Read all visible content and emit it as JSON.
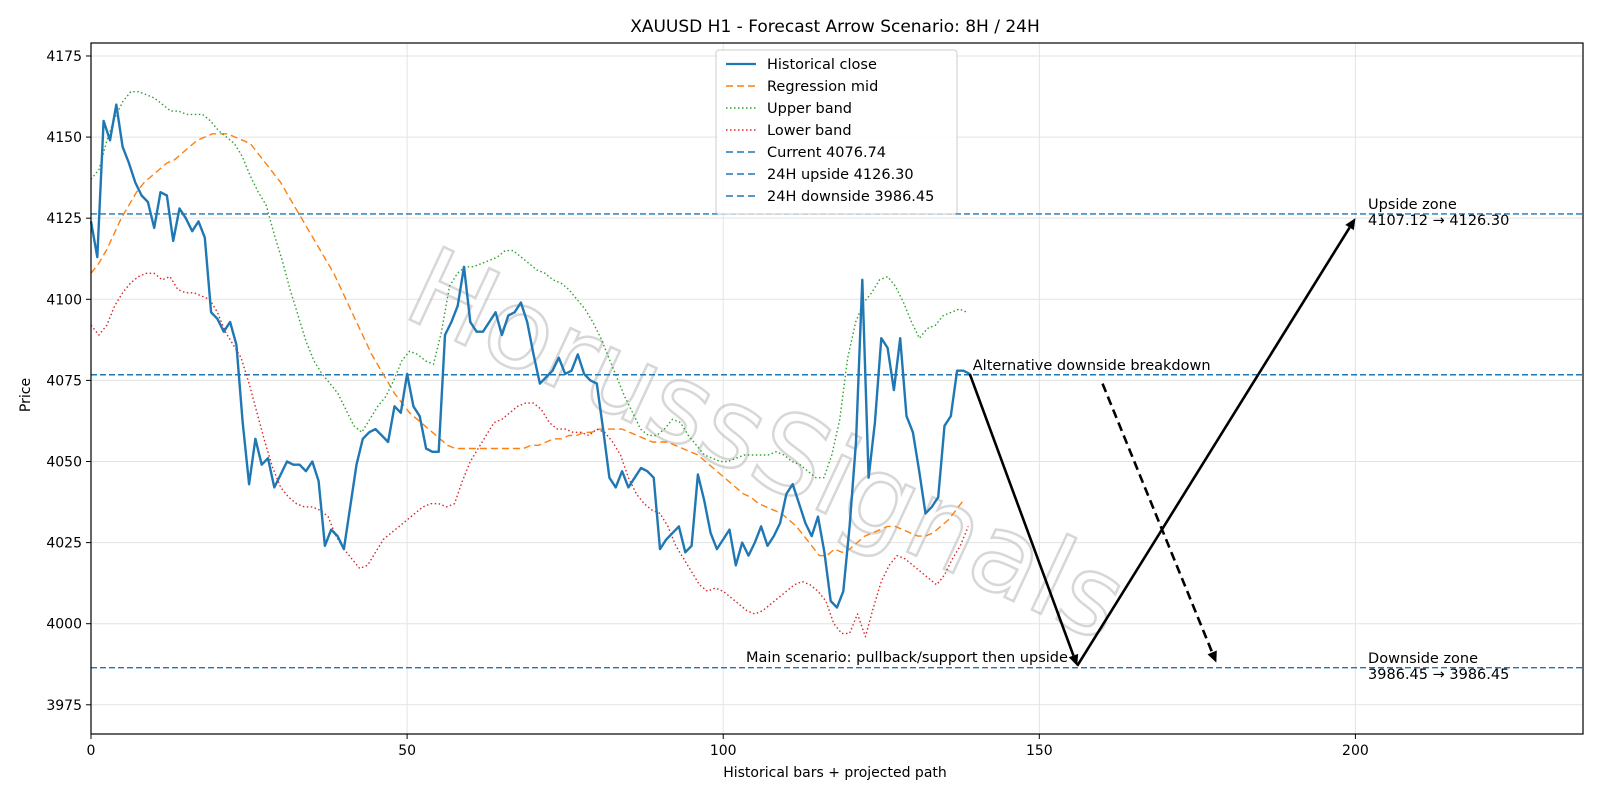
{
  "chart_data": {
    "type": "line",
    "title": "XAUUSD H1 - Forecast Arrow Scenario: 8H / 24H",
    "xlabel": "Historical bars + projected path",
    "ylabel": "Price",
    "xlim": [
      0,
      236
    ],
    "ylim": [
      3966,
      4179
    ],
    "x_ticks": [
      0,
      50,
      100,
      150,
      200
    ],
    "y_ticks": [
      3975,
      4000,
      4025,
      4050,
      4075,
      4100,
      4125,
      4150,
      4175
    ],
    "grid": true,
    "legend_position": "upper-center",
    "watermark": "HorussSignals",
    "series": [
      {
        "name": "Historical close",
        "color": "#1f77b4",
        "style": "solid",
        "x_start": 0,
        "values": [
          4124,
          4113,
          4155,
          4149,
          4160,
          4147,
          4142,
          4136,
          4132,
          4130,
          4122,
          4133,
          4132,
          4118,
          4128,
          4125,
          4121,
          4124,
          4119,
          4096,
          4094,
          4090,
          4093,
          4086,
          4062,
          4043,
          4057,
          4049,
          4051,
          4042,
          4046,
          4050,
          4049,
          4049,
          4047,
          4050,
          4044,
          4024,
          4029,
          4027,
          4023,
          4036,
          4049,
          4057,
          4059,
          4060,
          4058,
          4056,
          4067,
          4065,
          4077,
          4067,
          4064,
          4054,
          4053,
          4053,
          4089,
          4093,
          4098,
          4110,
          4093,
          4090,
          4090,
          4093,
          4096,
          4089,
          4095,
          4096,
          4099,
          4093,
          4083,
          4074,
          4076,
          4078,
          4082,
          4077,
          4078,
          4083,
          4077,
          4075,
          4074,
          4060,
          4045,
          4042,
          4047,
          4042,
          4045,
          4048,
          4047,
          4045,
          4023,
          4026,
          4028,
          4030,
          4022,
          4024,
          4046,
          4038,
          4028,
          4023,
          4026,
          4029,
          4018,
          4025,
          4021,
          4025,
          4030,
          4024,
          4027,
          4031,
          4040,
          4043,
          4037,
          4031,
          4027,
          4033,
          4022,
          4007,
          4005,
          4010,
          4030,
          4056,
          4106,
          4045,
          4062,
          4088,
          4085,
          4072,
          4088,
          4064,
          4059,
          4047,
          4034,
          4036,
          4039,
          4061,
          4064,
          4078,
          4078,
          4077
        ]
      },
      {
        "name": "Regression mid",
        "color": "#ff7f0e",
        "style": "dashed",
        "x_start": 0,
        "values": [
          4108,
          4111,
          4115,
          4120,
          4125,
          4129,
          4133,
          4136,
          4138,
          4140,
          4142,
          4143,
          4145,
          4147,
          4149,
          4150,
          4151,
          4151,
          4151,
          4150,
          4149,
          4148,
          4145,
          4142,
          4139,
          4136,
          4132,
          4128,
          4124,
          4120,
          4116,
          4112,
          4108,
          4103,
          4098,
          4093,
          4088,
          4083,
          4079,
          4075,
          4071,
          4068,
          4065,
          4063,
          4061,
          4059,
          4057,
          4055,
          4054,
          4054,
          4054,
          4054,
          4054,
          4054,
          4054,
          4054,
          4054,
          4054,
          4055,
          4055,
          4056,
          4057,
          4057,
          4058,
          4058,
          4059,
          4059,
          4060,
          4060,
          4060,
          4060,
          4059,
          4058,
          4057,
          4056,
          4056,
          4056,
          4055,
          4054,
          4053,
          4052,
          4050,
          4048,
          4046,
          4044,
          4042,
          4040,
          4039,
          4037,
          4036,
          4035,
          4034,
          4032,
          4030,
          4027,
          4024,
          4021,
          4021,
          4023,
          4022,
          4023,
          4025,
          4027,
          4028,
          4029,
          4030,
          4030,
          4029,
          4028,
          4027,
          4027,
          4028,
          4030,
          4032,
          4035,
          4038
        ],
        "x_values_step": 1.2
      },
      {
        "name": "Upper band",
        "color": "#2ca02c",
        "style": "dotted",
        "x_start": 0,
        "values": [
          4137,
          4140,
          4149,
          4156,
          4161,
          4164,
          4164,
          4163,
          4162,
          4160,
          4158,
          4158,
          4157,
          4157,
          4157,
          4155,
          4152,
          4150,
          4148,
          4144,
          4138,
          4133,
          4129,
          4120,
          4112,
          4103,
          4095,
          4087,
          4081,
          4077,
          4074,
          4071,
          4066,
          4061,
          4059,
          4063,
          4067,
          4070,
          4075,
          4081,
          4084,
          4083,
          4081,
          4080,
          4090,
          4104,
          4108,
          4110,
          4110,
          4111,
          4112,
          4113,
          4115,
          4115,
          4113,
          4111,
          4109,
          4108,
          4106,
          4105,
          4103,
          4100,
          4097,
          4093,
          4088,
          4082,
          4076,
          4070,
          4065,
          4060,
          4058,
          4058,
          4060,
          4063,
          4062,
          4058,
          4055,
          4052,
          4051,
          4050,
          4050,
          4051,
          4052,
          4052,
          4052,
          4052,
          4053,
          4052,
          4050,
          4049,
          4047,
          4045,
          4045,
          4052,
          4063,
          4082,
          4093,
          4099,
          4102,
          4106,
          4107,
          4104,
          4099,
          4093,
          4088,
          4091,
          4092,
          4095,
          4096,
          4097,
          4096
        ],
        "x_values_step": 1.26
      },
      {
        "name": "Lower band",
        "color": "#d62728",
        "style": "dotted",
        "x_start": 0,
        "values": [
          4092,
          4089,
          4092,
          4098,
          4102,
          4105,
          4107,
          4108,
          4108,
          4106,
          4107,
          4103,
          4102,
          4102,
          4101,
          4100,
          4096,
          4090,
          4086,
          4082,
          4074,
          4065,
          4056,
          4048,
          4042,
          4039,
          4037,
          4036,
          4036,
          4035,
          4033,
          4027,
          4023,
          4020,
          4017,
          4018,
          4022,
          4026,
          4028,
          4030,
          4032,
          4034,
          4036,
          4037,
          4037,
          4036,
          4037,
          4044,
          4050,
          4054,
          4058,
          4062,
          4063,
          4065,
          4067,
          4068,
          4068,
          4066,
          4062,
          4060,
          4060,
          4059,
          4059,
          4058,
          4060,
          4059,
          4056,
          4052,
          4045,
          4040,
          4037,
          4035,
          4034,
          4030,
          4024,
          4020,
          4016,
          4012,
          4010,
          4011,
          4010,
          4008,
          4006,
          4004,
          4003,
          4004,
          4006,
          4008,
          4010,
          4012,
          4013,
          4012,
          4010,
          4007,
          4000,
          3997,
          3997,
          4003,
          3996,
          4005,
          4013,
          4018,
          4021,
          4020,
          4018,
          4016,
          4014,
          4012,
          4015,
          4020,
          4024,
          4030
        ],
        "x_values_step": 1.25
      }
    ],
    "reference_lines": [
      {
        "name": "Current 4076.74",
        "value": 4076.74,
        "color": "#1f77b4",
        "style": "dashed"
      },
      {
        "name": "24H upside 4126.30",
        "value": 4126.3,
        "color": "#1f77b4",
        "style": "dashed"
      },
      {
        "name": "24H downside 3986.45",
        "value": 3986.45,
        "color": "#1f77b4",
        "style": "dashed"
      }
    ],
    "arrows": [
      {
        "from": [
          139,
          4077
        ],
        "to": [
          156,
          3987
        ],
        "color": "#000000",
        "style": "solid"
      },
      {
        "from": [
          156,
          3987
        ],
        "to": [
          200,
          4125
        ],
        "color": "#000000",
        "style": "solid"
      },
      {
        "from": [
          160,
          4074
        ],
        "to": [
          178,
          3988
        ],
        "color": "#000000",
        "style": "dashed"
      }
    ],
    "annotations": [
      {
        "text": "Alternative downside breakdown",
        "x": 139,
        "y": 4077,
        "anchor": "start"
      },
      {
        "text": "Main scenario: pullback/support then upside",
        "x": 155,
        "y": 3987,
        "anchor": "end"
      },
      {
        "lines": [
          "Upside zone",
          "4107.12 → 4126.30"
        ],
        "x": 202,
        "y": 4126
      },
      {
        "lines": [
          "Downside zone",
          "3986.45 → 3986.45"
        ],
        "x": 202,
        "y": 3986
      }
    ]
  }
}
